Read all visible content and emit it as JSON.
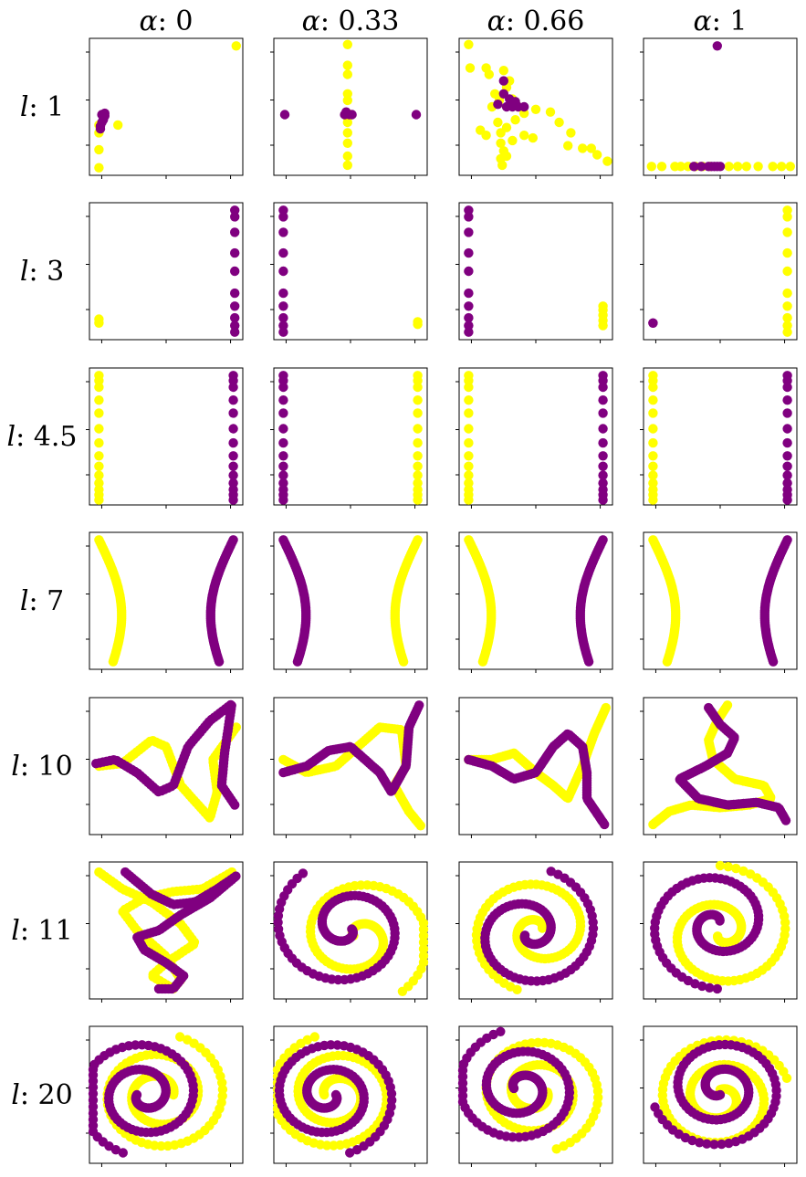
{
  "chart_data": {
    "type": "scatter",
    "column_headers": [
      "α: 0",
      "α: 0.33",
      "α: 0.66",
      "α: 1"
    ],
    "column_header_parts": [
      {
        "symbol": "α",
        "value": ": 0"
      },
      {
        "symbol": "α",
        "value": ": 0.33"
      },
      {
        "symbol": "α",
        "value": ": 0.66"
      },
      {
        "symbol": "α",
        "value": ": 1"
      }
    ],
    "row_headers": [
      "l: 1",
      "l: 3",
      "l: 4.5",
      "l: 7",
      "l: 10",
      "l: 11",
      "l: 20"
    ],
    "row_header_parts": [
      {
        "symbol": "l",
        "value": ": 1"
      },
      {
        "symbol": "l",
        "value": ": 3"
      },
      {
        "symbol": "l",
        "value": ": 4.5"
      },
      {
        "symbol": "l",
        "value": ": 7"
      },
      {
        "symbol": "l",
        "value": ": 10"
      },
      {
        "symbol": "l",
        "value": ": 11"
      },
      {
        "symbol": "l",
        "value": ": 20"
      }
    ],
    "alpha_values": [
      0,
      0.33,
      0.66,
      1
    ],
    "l_values": [
      1,
      3,
      4.5,
      7,
      10,
      11,
      20
    ],
    "series_colors": {
      "yellow": "#ffff00",
      "purple": "#800080"
    },
    "axis_tick_labels_visible": false,
    "grid": false
  }
}
